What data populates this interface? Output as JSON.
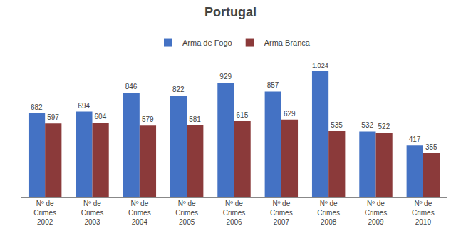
{
  "chart_data": {
    "type": "bar",
    "title": "Portugal",
    "categories": [
      "Nº de\nCrimes\n2002",
      "Nº de\nCrimes\n2003",
      "Nº de\nCrimes\n2004",
      "Nº de\nCrimes\n2005",
      "Nº de\nCrimes\n2006",
      "Nº de\nCrimes\n2007",
      "Nº de\nCrimes\n2008",
      "Nº de\nCrimes\n2009",
      "Nº de\nCrimes\n2010"
    ],
    "series": [
      {
        "name": "Arma de Fogo",
        "color": "#4472C4",
        "values": [
          682,
          694,
          846,
          822,
          929,
          857,
          1024,
          532,
          417
        ],
        "value_labels": [
          "682",
          "694",
          "846",
          "822",
          "929",
          "857",
          "1.024",
          "532",
          "417"
        ]
      },
      {
        "name": "Arma Branca",
        "color": "#8B3A3A",
        "values": [
          597,
          604,
          579,
          581,
          615,
          629,
          535,
          522,
          355
        ]
      }
    ],
    "ylim": [
      0,
      1150
    ],
    "grid": false,
    "legend": "top",
    "data_labels": true,
    "tick_labels": "x"
  }
}
